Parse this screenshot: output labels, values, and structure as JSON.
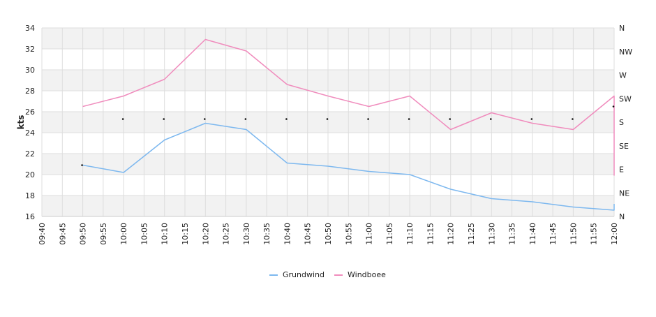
{
  "chart_data": {
    "type": "line",
    "ylabel": "kts",
    "ylim": [
      16,
      34
    ],
    "yticks": [
      16,
      18,
      20,
      22,
      24,
      26,
      28,
      30,
      32,
      34
    ],
    "xlim": [
      "09:40",
      "12:00"
    ],
    "xticks": [
      "09:40",
      "09:45",
      "09:50",
      "09:55",
      "10:00",
      "10:05",
      "10:10",
      "10:15",
      "10:20",
      "10:25",
      "10:30",
      "10:35",
      "10:40",
      "10:45",
      "10:50",
      "10:55",
      "11:00",
      "11:05",
      "11:10",
      "11:15",
      "11:20",
      "11:25",
      "11:30",
      "11:35",
      "11:40",
      "11:45",
      "11:50",
      "11:55",
      "12:00"
    ],
    "right_axis": {
      "label": "",
      "ticks": [
        "N",
        "NW",
        "W",
        "SW",
        "S",
        "SE",
        "E",
        "NE",
        "N"
      ]
    },
    "grid": true,
    "alternating_bands": true,
    "legend_position": "bottom-center",
    "series": [
      {
        "name": "Grundwind",
        "color": "#7db8ef",
        "x": [
          "09:50",
          "10:00",
          "10:10",
          "10:20",
          "10:30",
          "10:40",
          "10:50",
          "11:00",
          "11:10",
          "11:20",
          "11:30",
          "11:40",
          "11:50",
          "12:00",
          "12:00"
        ],
        "y": [
          20.9,
          20.2,
          23.3,
          24.9,
          24.3,
          21.1,
          20.8,
          20.3,
          20.0,
          18.6,
          17.7,
          17.4,
          16.9,
          16.6,
          17.2
        ]
      },
      {
        "name": "Windboee",
        "color": "#f08cbd",
        "x": [
          "09:50",
          "10:00",
          "10:10",
          "10:20",
          "10:30",
          "10:40",
          "10:50",
          "11:00",
          "11:10",
          "11:20",
          "11:30",
          "11:40",
          "11:50",
          "12:00",
          "12:00"
        ],
        "y": [
          26.5,
          27.5,
          29.1,
          32.9,
          31.8,
          28.6,
          27.5,
          26.5,
          27.5,
          24.3,
          25.9,
          24.9,
          24.3,
          27.5,
          19.9
        ]
      }
    ],
    "direction_marks": {
      "x": [
        "09:50",
        "10:00",
        "10:10",
        "10:20",
        "10:30",
        "10:40",
        "10:50",
        "11:00",
        "11:10",
        "11:20",
        "11:30",
        "11:40",
        "11:50",
        "12:00"
      ],
      "y": [
        20.9,
        25.3,
        25.3,
        25.3,
        25.3,
        25.3,
        25.3,
        25.3,
        25.3,
        25.3,
        25.3,
        25.3,
        25.3,
        26.5
      ]
    }
  }
}
